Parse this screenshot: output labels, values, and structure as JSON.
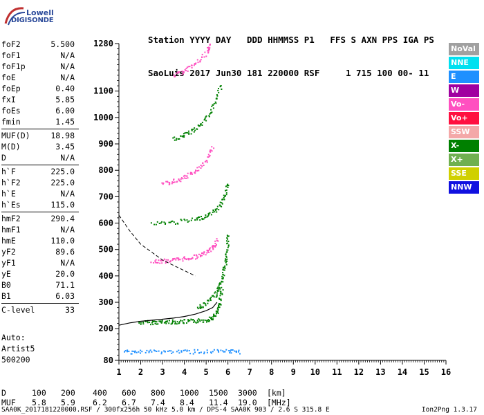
{
  "logo": {
    "line1": "Lowell",
    "line2": "DIGISONDE"
  },
  "header": {
    "line1": "Station YYYY DAY   DDD HHMMSS P1   FFS S AXN PPS IGA PS",
    "line2": "SaoLuis 2017 Jun30 181 220000 RSF     1 715 100 00- 11"
  },
  "params": [
    {
      "label": "foF2",
      "value": "5.500"
    },
    {
      "label": "foF1",
      "value": "N/A"
    },
    {
      "label": "foF1p",
      "value": "N/A"
    },
    {
      "label": "foE",
      "value": "N/A"
    },
    {
      "label": "foEp",
      "value": "0.40"
    },
    {
      "label": "fxI",
      "value": "5.85"
    },
    {
      "label": "foEs",
      "value": "6.00"
    },
    {
      "label": "fmin",
      "value": "1.45"
    },
    {
      "label": "MUF(D)",
      "value": "18.98"
    },
    {
      "label": "M(D)",
      "value": "3.45"
    },
    {
      "label": "D",
      "value": "N/A"
    },
    {
      "label": "h`F",
      "value": "225.0"
    },
    {
      "label": "h`F2",
      "value": "225.0"
    },
    {
      "label": "h`E",
      "value": "N/A"
    },
    {
      "label": "h`Es",
      "value": "115.0"
    },
    {
      "label": "hmF2",
      "value": "290.4"
    },
    {
      "label": "hmF1",
      "value": "N/A"
    },
    {
      "label": "hmE",
      "value": "110.0"
    },
    {
      "label": "yF2",
      "value": "89.6"
    },
    {
      "label": "yF1",
      "value": "N/A"
    },
    {
      "label": "yE",
      "value": "20.0"
    },
    {
      "label": "B0",
      "value": "71.1"
    },
    {
      "label": "B1",
      "value": "6.03"
    },
    {
      "label": "C-level",
      "value": "33"
    }
  ],
  "autoscaling": {
    "line1": "Auto:",
    "line2": "Artist5",
    "line3": "500200"
  },
  "legend": [
    {
      "label": "NoVal",
      "color": "#a0a0a0"
    },
    {
      "label": "NNE",
      "color": "#00e0f0"
    },
    {
      "label": "E",
      "color": "#1e90ff"
    },
    {
      "label": "W",
      "color": "#a000a0"
    },
    {
      "label": "Vo-",
      "color": "#ff50c0"
    },
    {
      "label": "Vo+",
      "color": "#ff1040"
    },
    {
      "label": "SSW",
      "color": "#f4a8a8"
    },
    {
      "label": "X-",
      "color": "#008000"
    },
    {
      "label": "X+",
      "color": "#70b050"
    },
    {
      "label": "SSE",
      "color": "#d0d000"
    },
    {
      "label": "NNW",
      "color": "#1010e0"
    }
  ],
  "chart_data": {
    "type": "scatter",
    "x_ticks": [
      1,
      2,
      3,
      4,
      5,
      6,
      7,
      8,
      9,
      10,
      11,
      12,
      13,
      14,
      15,
      16
    ],
    "y_ticks": [
      80,
      200,
      300,
      400,
      500,
      600,
      700,
      800,
      900,
      1000,
      1100,
      1280
    ],
    "xlim": [
      1,
      16
    ],
    "ylim": [
      80,
      1280
    ],
    "grid": false,
    "legend_position": "right",
    "trace_profile": {
      "x": [
        1.0,
        1.5,
        2.0,
        2.5,
        3.0,
        3.5,
        4.0,
        4.5,
        5.0,
        5.3,
        5.5
      ],
      "y": [
        213,
        222,
        228,
        232,
        236,
        240,
        246,
        255,
        268,
        280,
        300
      ]
    },
    "trace_dashed": {
      "x": [
        1.0,
        1.5,
        2.0,
        2.5,
        3.0,
        3.5,
        4.0,
        4.5
      ],
      "y": [
        630,
        570,
        520,
        490,
        460,
        440,
        420,
        400
      ]
    },
    "echo_traces": [
      {
        "series": "X-",
        "x": [
          1.9,
          2.5,
          3.0,
          3.5,
          4.0,
          4.5,
          5.0,
          5.3,
          5.5,
          5.6,
          5.7
        ],
        "y": [
          225,
          226,
          227,
          228,
          229,
          231,
          235,
          245,
          265,
          300,
          360
        ]
      },
      {
        "series": "X-",
        "x": [
          4.6,
          5.0,
          5.4,
          5.6,
          5.75,
          5.85,
          5.95,
          6.0
        ],
        "y": [
          280,
          300,
          330,
          360,
          400,
          450,
          500,
          560
        ]
      },
      {
        "series": "Vo-",
        "x": [
          2.5,
          3.0,
          3.5,
          4.0,
          4.5,
          5.0,
          5.3,
          5.5
        ],
        "y": [
          455,
          458,
          462,
          468,
          475,
          490,
          510,
          540
        ]
      },
      {
        "series": "X-",
        "x": [
          2.5,
          3.5,
          4.5,
          5.0,
          5.5,
          5.8,
          6.0
        ],
        "y": [
          600,
          605,
          615,
          630,
          655,
          700,
          760
        ]
      },
      {
        "series": "Vo-",
        "x": [
          3.0,
          3.5,
          4.0,
          4.5,
          5.0,
          5.3
        ],
        "y": [
          750,
          760,
          775,
          800,
          840,
          890
        ]
      },
      {
        "series": "X-",
        "x": [
          3.5,
          4.0,
          4.5,
          5.0,
          5.4,
          5.7
        ],
        "y": [
          920,
          935,
          960,
          1000,
          1060,
          1130
        ]
      },
      {
        "series": "Vo-",
        "x": [
          3.5,
          4.0,
          4.5,
          5.0,
          5.2
        ],
        "y": [
          1160,
          1180,
          1205,
          1245,
          1280
        ]
      },
      {
        "series": "E",
        "x": [
          1.2,
          2.0,
          3.0,
          4.0,
          5.0,
          6.0,
          6.5
        ],
        "y": [
          115,
          115,
          115,
          115,
          115,
          115,
          115
        ]
      }
    ]
  },
  "distance_scale": {
    "d_label": "D",
    "d_values": [
      "100",
      "200",
      "400",
      "600",
      "800",
      "1000",
      "1500",
      "3000",
      "[km]"
    ],
    "muf_label": "MUF",
    "muf_values": [
      "5.8",
      "5.9",
      "6.2",
      "6.7",
      "7.4",
      "8.4",
      "11.4",
      "19.0",
      "[MHz]"
    ]
  },
  "footer": {
    "text": "SAA0K_2017181220000.RSF / 300fx256h 50 kHz 5.0 km / DPS-4 SAA0K 903 / 2.6 S 315.8 E",
    "version": "Ion2Png 1.3.17"
  }
}
